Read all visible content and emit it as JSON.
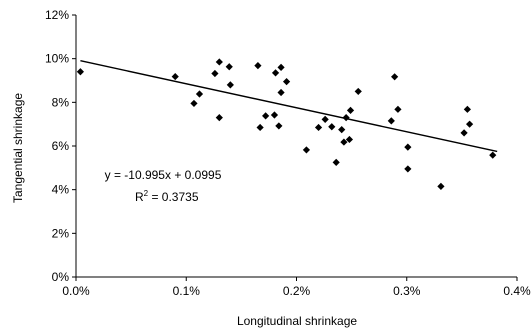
{
  "chart_data": {
    "type": "scatter",
    "xlabel": "Longitudinal shrinkage",
    "ylabel": "Tangential shrinkage",
    "xlim": [
      0,
      0.004
    ],
    "ylim": [
      0,
      0.12
    ],
    "x_ticks": [
      0,
      0.001,
      0.002,
      0.003,
      0.004
    ],
    "x_tick_labels": [
      "0.0%",
      "0.1%",
      "0.2%",
      "0.3%",
      "0.4%"
    ],
    "y_ticks": [
      0,
      0.02,
      0.04,
      0.06,
      0.08,
      0.1,
      0.12
    ],
    "y_tick_labels": [
      "0%",
      "2%",
      "4%",
      "6%",
      "8%",
      "10%",
      "12%"
    ],
    "grid": false,
    "marker": "diamond",
    "marker_color": "#000000",
    "points": [
      {
        "x": 4e-05,
        "y": 0.094
      },
      {
        "x": 0.0009,
        "y": 0.0918
      },
      {
        "x": 0.00107,
        "y": 0.0795
      },
      {
        "x": 0.00112,
        "y": 0.0838
      },
      {
        "x": 0.00126,
        "y": 0.0932
      },
      {
        "x": 0.0013,
        "y": 0.0985
      },
      {
        "x": 0.0013,
        "y": 0.073
      },
      {
        "x": 0.00139,
        "y": 0.0963
      },
      {
        "x": 0.0014,
        "y": 0.088
      },
      {
        "x": 0.00165,
        "y": 0.0968
      },
      {
        "x": 0.00167,
        "y": 0.0685
      },
      {
        "x": 0.00172,
        "y": 0.0738
      },
      {
        "x": 0.0018,
        "y": 0.0742
      },
      {
        "x": 0.00181,
        "y": 0.0935
      },
      {
        "x": 0.00184,
        "y": 0.0692
      },
      {
        "x": 0.00186,
        "y": 0.096
      },
      {
        "x": 0.00186,
        "y": 0.0845
      },
      {
        "x": 0.00191,
        "y": 0.0895
      },
      {
        "x": 0.00209,
        "y": 0.0582
      },
      {
        "x": 0.0022,
        "y": 0.0685
      },
      {
        "x": 0.00226,
        "y": 0.0722
      },
      {
        "x": 0.00232,
        "y": 0.0688
      },
      {
        "x": 0.00236,
        "y": 0.0525
      },
      {
        "x": 0.00241,
        "y": 0.0675
      },
      {
        "x": 0.00243,
        "y": 0.0618
      },
      {
        "x": 0.00245,
        "y": 0.073
      },
      {
        "x": 0.00248,
        "y": 0.063
      },
      {
        "x": 0.00249,
        "y": 0.0763
      },
      {
        "x": 0.00256,
        "y": 0.085
      },
      {
        "x": 0.00286,
        "y": 0.0715
      },
      {
        "x": 0.00289,
        "y": 0.0917
      },
      {
        "x": 0.00292,
        "y": 0.0768
      },
      {
        "x": 0.00301,
        "y": 0.0595
      },
      {
        "x": 0.00301,
        "y": 0.0495
      },
      {
        "x": 0.00331,
        "y": 0.0415
      },
      {
        "x": 0.00352,
        "y": 0.066
      },
      {
        "x": 0.00355,
        "y": 0.0768
      },
      {
        "x": 0.00357,
        "y": 0.07
      },
      {
        "x": 0.00378,
        "y": 0.0558
      }
    ],
    "trendline": {
      "slope": -10.995,
      "intercept": 0.0995,
      "x_start": 4e-05,
      "x_end": 0.00382
    },
    "annotations": {
      "equation": "y = -10.995x + 0.0995",
      "r2_prefix": "R",
      "r2_sup": "2",
      "r2_value": " = 0.3735"
    }
  }
}
